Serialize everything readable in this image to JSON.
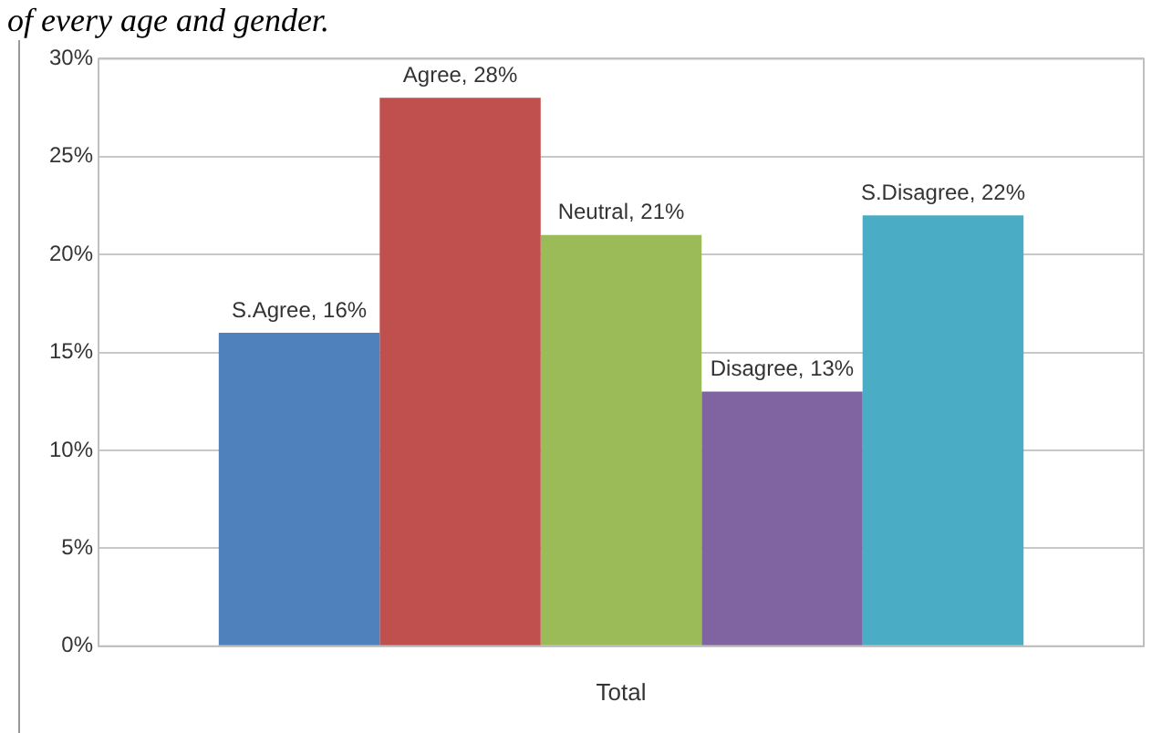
{
  "chart_data": {
    "type": "bar",
    "annotations": [
      "of every age and gender."
    ],
    "categories": [
      "Total"
    ],
    "series": [
      {
        "color": "#4f81bd",
        "values": [
          16
        ],
        "value_labels": [
          "S.Agree, 16%"
        ]
      },
      {
        "color": "#c0504d",
        "values": [
          28
        ],
        "value_labels": [
          "Agree, 28%"
        ]
      },
      {
        "color": "#9bbb59",
        "values": [
          21
        ],
        "value_labels": [
          "Neutral, 21%"
        ]
      },
      {
        "color": "#8064a2",
        "values": [
          13
        ],
        "value_labels": [
          "Disagree, 13%"
        ]
      },
      {
        "color": "#4bacc6",
        "values": [
          22
        ],
        "value_labels": [
          "S.Disagree, 22%"
        ]
      }
    ],
    "ylim": [
      0,
      30
    ],
    "yticks": [
      {
        "value": 0,
        "label": "0%"
      },
      {
        "value": 5,
        "label": "5%"
      },
      {
        "value": 10,
        "label": "10%"
      },
      {
        "value": 15,
        "label": "15%"
      },
      {
        "value": 20,
        "label": "20%"
      },
      {
        "value": 25,
        "label": "25%"
      },
      {
        "value": 30,
        "label": "30%"
      }
    ],
    "grid": "y",
    "legend": false
  }
}
